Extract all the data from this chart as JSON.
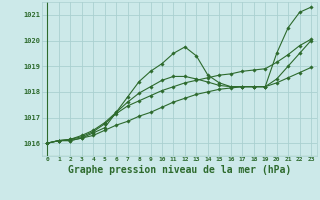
{
  "bg_color": "#cce9e9",
  "grid_color": "#aad0d0",
  "line_color": "#2d6a2d",
  "marker_color": "#2d6a2d",
  "xlabel": "Graphe pression niveau de la mer (hPa)",
  "xlabel_fontsize": 7.0,
  "ylim": [
    1015.5,
    1021.5
  ],
  "xlim": [
    -0.5,
    23.5
  ],
  "yticks": [
    1016,
    1017,
    1018,
    1019,
    1020,
    1021
  ],
  "xtick_labels": [
    "0",
    "1",
    "2",
    "3",
    "4",
    "5",
    "6",
    "7",
    "8",
    "9",
    "10",
    "11",
    "12",
    "13",
    "14",
    "15",
    "16",
    "17",
    "18",
    "19",
    "20",
    "21",
    "22",
    "23"
  ],
  "series": [
    [
      1016.0,
      1016.1,
      1016.1,
      1016.2,
      1016.4,
      1016.6,
      1017.2,
      1017.8,
      1018.4,
      1018.8,
      1019.1,
      1019.5,
      1019.75,
      1019.4,
      1018.65,
      1018.35,
      1018.2,
      1018.2,
      1018.2,
      1018.2,
      1019.5,
      1020.5,
      1021.1,
      1021.3
    ],
    [
      1016.0,
      1016.1,
      1016.15,
      1016.25,
      1016.45,
      1016.75,
      1017.15,
      1017.45,
      1017.65,
      1017.85,
      1018.05,
      1018.2,
      1018.35,
      1018.45,
      1018.55,
      1018.65,
      1018.7,
      1018.8,
      1018.85,
      1018.9,
      1019.15,
      1019.45,
      1019.8,
      1020.05
    ],
    [
      1016.0,
      1016.1,
      1016.15,
      1016.3,
      1016.5,
      1016.8,
      1017.2,
      1017.6,
      1017.95,
      1018.2,
      1018.45,
      1018.6,
      1018.6,
      1018.5,
      1018.38,
      1018.25,
      1018.2,
      1018.2,
      1018.2,
      1018.2,
      1018.5,
      1019.0,
      1019.5,
      1020.0
    ],
    [
      1016.0,
      1016.1,
      1016.1,
      1016.2,
      1016.3,
      1016.5,
      1016.7,
      1016.85,
      1017.05,
      1017.2,
      1017.4,
      1017.6,
      1017.75,
      1017.9,
      1018.0,
      1018.1,
      1018.15,
      1018.2,
      1018.2,
      1018.2,
      1018.35,
      1018.55,
      1018.75,
      1018.95
    ]
  ]
}
